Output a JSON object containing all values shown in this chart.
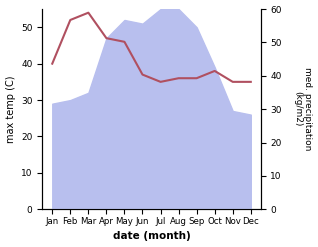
{
  "months": [
    "Jan",
    "Feb",
    "Mar",
    "Apr",
    "May",
    "Jun",
    "Jul",
    "Aug",
    "Sep",
    "Oct",
    "Nov",
    "Dec"
  ],
  "temperature": [
    40,
    52,
    54,
    47,
    46,
    37,
    35,
    36,
    36,
    38,
    35,
    35
  ],
  "precipitation": [
    29,
    30,
    32,
    47,
    52,
    51,
    55,
    55,
    50,
    39,
    27,
    26
  ],
  "temp_color": "#b05060",
  "precip_fill_color": "#b8bfee",
  "xlabel": "date (month)",
  "ylabel_left": "max temp (C)",
  "ylabel_right": "med. precipitation\n(kg/m2)",
  "ylim_left": [
    0,
    55
  ],
  "ylim_right": [
    0,
    60
  ],
  "yticks_left": [
    0,
    10,
    20,
    30,
    40,
    50
  ],
  "yticks_right": [
    0,
    10,
    20,
    30,
    40,
    50,
    60
  ],
  "background_color": "#ffffff",
  "fig_width": 3.18,
  "fig_height": 2.47,
  "dpi": 100
}
